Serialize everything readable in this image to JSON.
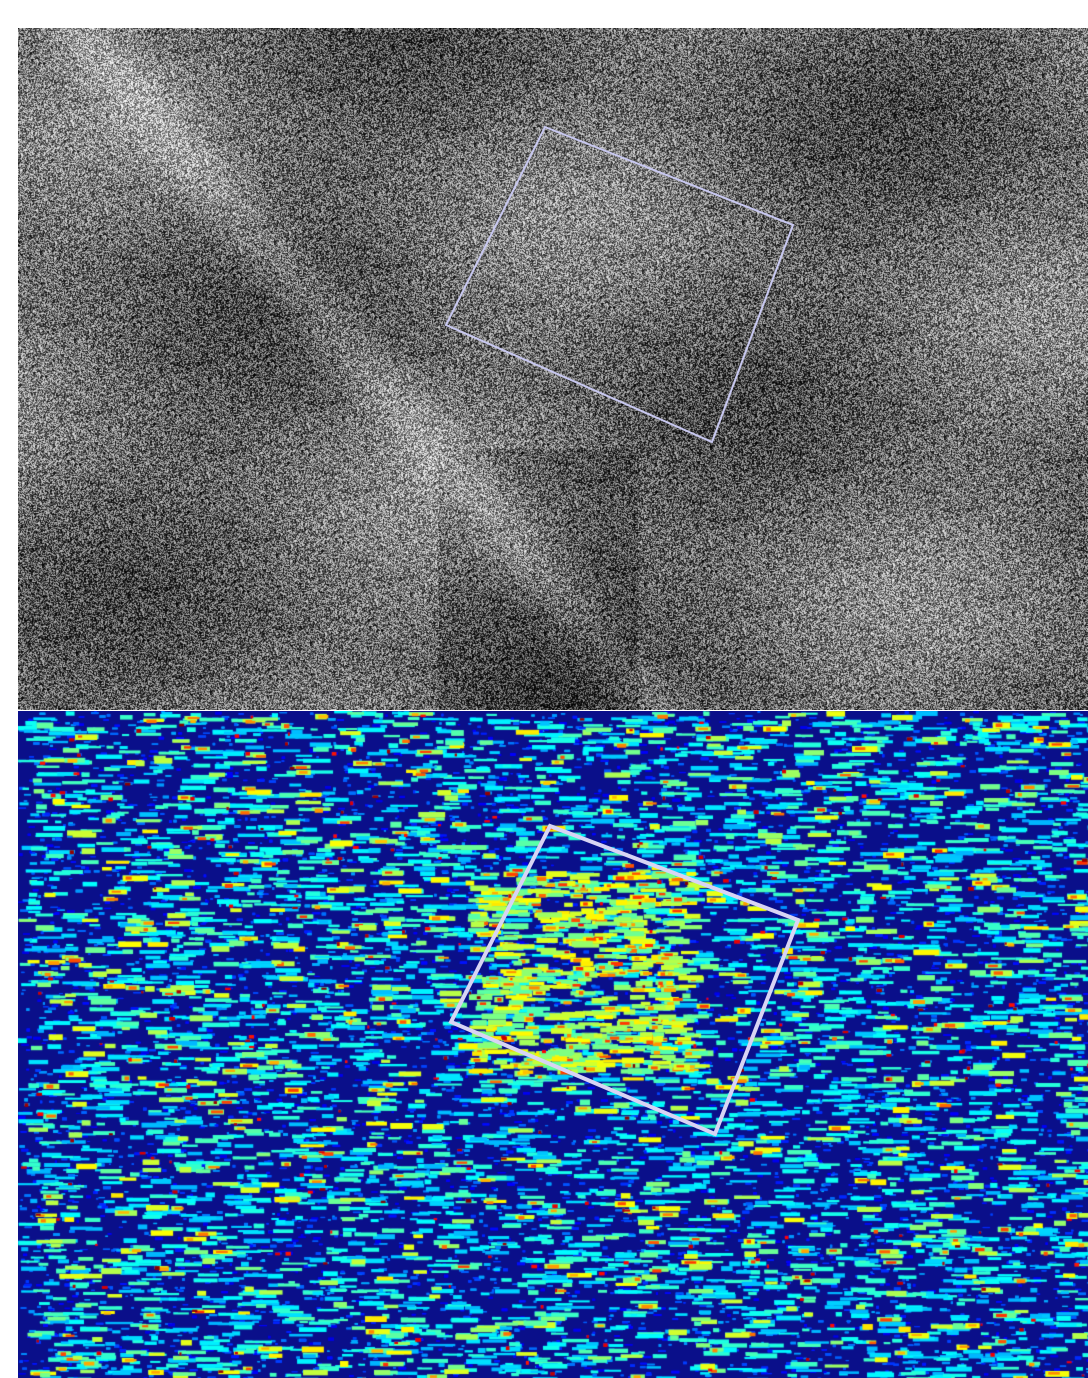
{
  "figure": {
    "panels": [
      {
        "id": "sar-intensity",
        "colormap": "grayscale",
        "overlay_color": "#c8c8f0"
      },
      {
        "id": "sar-heatmap",
        "colormap": "jet",
        "overlay_color": "#d8d4f4"
      }
    ],
    "colors": {
      "background": "#ffffff",
      "heatmap_base": "#0a0f8a"
    }
  }
}
